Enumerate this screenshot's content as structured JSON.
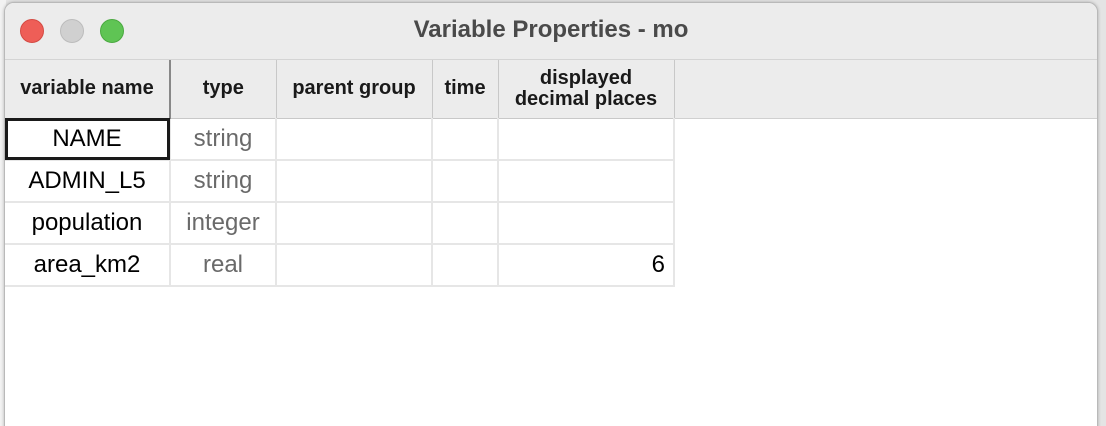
{
  "window": {
    "title": "Variable Properties - mo"
  },
  "table": {
    "columns": [
      "variable name",
      "type",
      "parent group",
      "time",
      "displayed\ndecimal places"
    ],
    "rows": [
      {
        "name": "NAME",
        "type": "string",
        "parent_group": "",
        "time": "",
        "decimals": ""
      },
      {
        "name": "ADMIN_L5",
        "type": "string",
        "parent_group": "",
        "time": "",
        "decimals": ""
      },
      {
        "name": "population",
        "type": "integer",
        "parent_group": "",
        "time": "",
        "decimals": ""
      },
      {
        "name": "area_km2",
        "type": "real",
        "parent_group": "",
        "time": "",
        "decimals": "6"
      }
    ],
    "selected_cell": "NAME"
  },
  "colors": {
    "close": "#ee5e57",
    "minimize": "#d0d0d0",
    "zoom": "#5fc454",
    "header_bg": "#ececec"
  }
}
